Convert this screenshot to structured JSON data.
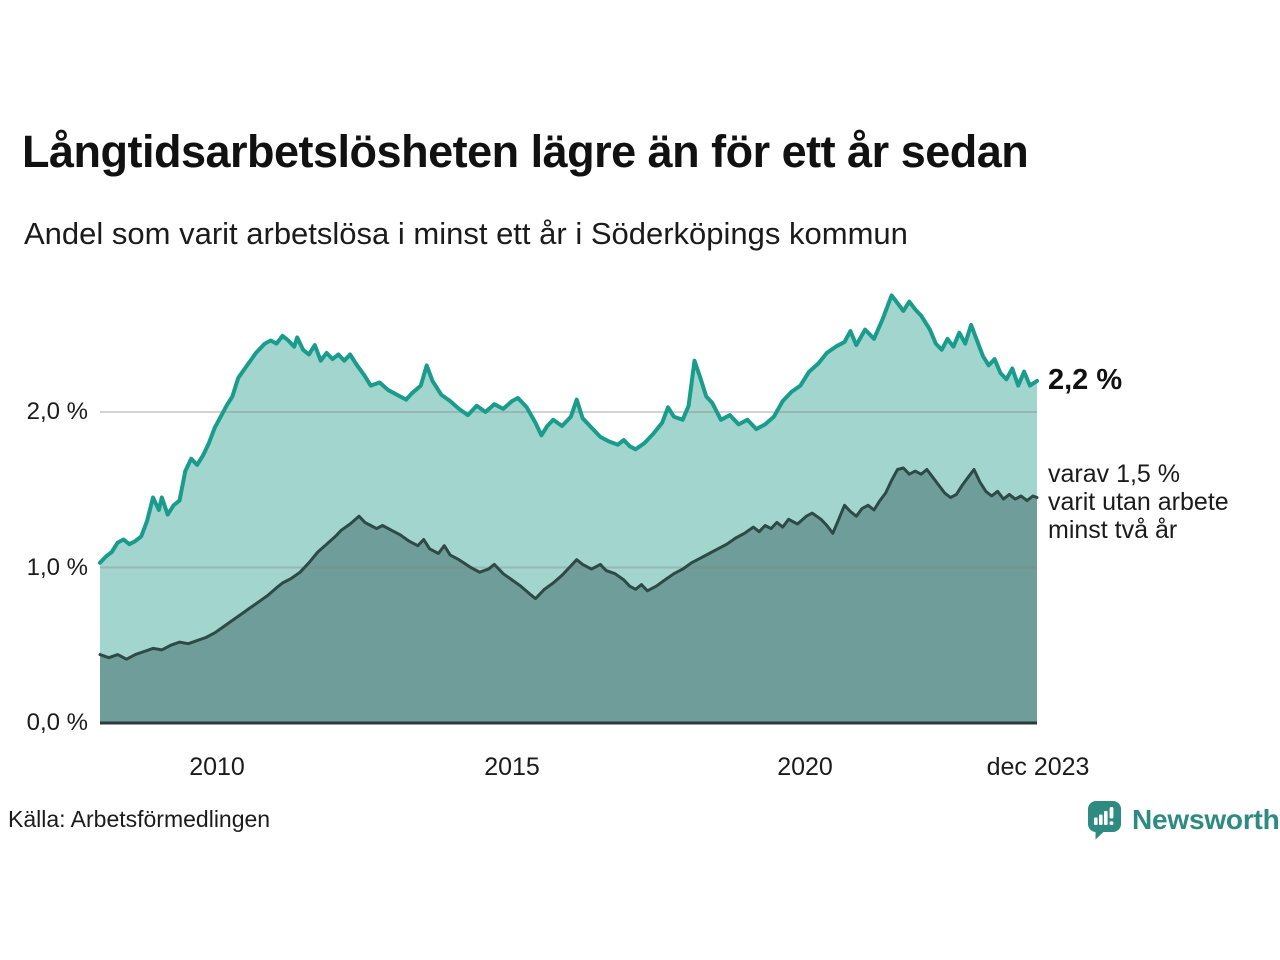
{
  "footer": {
    "source": "Källa: Arbetsförmedlingen",
    "brand": "Newsworthy"
  },
  "annotations": {
    "latest_total": "2,2 %",
    "breakdown": "varav 1,5 %\nvarit utan arbete\nminst två år"
  },
  "colors": {
    "series1_fill": "#a3d5cf",
    "series1_stroke": "#1a9c8c",
    "series2_fill": "#6f9d99",
    "series2_stroke": "#2d4a46",
    "gridline": "#808080",
    "baseline": "#2e3a38",
    "brand_teal": "#2f8b82",
    "text": "#1b1b1b"
  },
  "chart_data": {
    "type": "area",
    "title": "Långtidsarbetslösheten lägre än för ett år sedan",
    "subtitle": "Andel som varit arbetslösa i minst ett år i Söderköpings kommun",
    "unit": "%",
    "grid": "horizontal",
    "legend_position": "right-annotations",
    "xlim": [
      2008,
      2023.92
    ],
    "ylim": [
      0,
      3
    ],
    "xticks": [
      {
        "t": 2010,
        "label": "2010"
      },
      {
        "t": 2015,
        "label": "2015"
      },
      {
        "t": 2020,
        "label": "2020"
      },
      {
        "t": 2023.92,
        "label": "dec 2023"
      }
    ],
    "yticks": [
      {
        "value": 0,
        "label": "0,0 %"
      },
      {
        "value": 1,
        "label": "1,0 %"
      },
      {
        "value": 2,
        "label": "2,0 %"
      }
    ],
    "series": [
      {
        "name": "Andel arbetslösa minst ett år",
        "end_value": 2.2,
        "end_label": "2,2 %",
        "fill": "#a3d5cf",
        "stroke": "#1a9c8c",
        "stroke_width": 4,
        "points": [
          [
            2008.0,
            1.03
          ],
          [
            2008.1,
            1.07
          ],
          [
            2008.2,
            1.1
          ],
          [
            2008.3,
            1.16
          ],
          [
            2008.4,
            1.18
          ],
          [
            2008.5,
            1.15
          ],
          [
            2008.6,
            1.17
          ],
          [
            2008.7,
            1.2
          ],
          [
            2008.8,
            1.3
          ],
          [
            2008.9,
            1.45
          ],
          [
            2009.0,
            1.37
          ],
          [
            2009.05,
            1.45
          ],
          [
            2009.15,
            1.34
          ],
          [
            2009.25,
            1.4
          ],
          [
            2009.35,
            1.43
          ],
          [
            2009.45,
            1.62
          ],
          [
            2009.55,
            1.7
          ],
          [
            2009.65,
            1.66
          ],
          [
            2009.75,
            1.72
          ],
          [
            2009.85,
            1.8
          ],
          [
            2009.95,
            1.9
          ],
          [
            2010.05,
            1.97
          ],
          [
            2010.15,
            2.04
          ],
          [
            2010.25,
            2.1
          ],
          [
            2010.35,
            2.22
          ],
          [
            2010.5,
            2.3
          ],
          [
            2010.65,
            2.38
          ],
          [
            2010.8,
            2.44
          ],
          [
            2010.9,
            2.46
          ],
          [
            2011.0,
            2.44
          ],
          [
            2011.1,
            2.49
          ],
          [
            2011.2,
            2.46
          ],
          [
            2011.3,
            2.42
          ],
          [
            2011.35,
            2.48
          ],
          [
            2011.45,
            2.4
          ],
          [
            2011.55,
            2.37
          ],
          [
            2011.65,
            2.43
          ],
          [
            2011.75,
            2.33
          ],
          [
            2011.85,
            2.38
          ],
          [
            2011.95,
            2.34
          ],
          [
            2012.05,
            2.37
          ],
          [
            2012.15,
            2.33
          ],
          [
            2012.25,
            2.37
          ],
          [
            2012.35,
            2.31
          ],
          [
            2012.5,
            2.23
          ],
          [
            2012.6,
            2.17
          ],
          [
            2012.75,
            2.19
          ],
          [
            2012.9,
            2.14
          ],
          [
            2013.05,
            2.11
          ],
          [
            2013.2,
            2.08
          ],
          [
            2013.3,
            2.12
          ],
          [
            2013.45,
            2.17
          ],
          [
            2013.55,
            2.3
          ],
          [
            2013.65,
            2.2
          ],
          [
            2013.8,
            2.11
          ],
          [
            2013.95,
            2.07
          ],
          [
            2014.1,
            2.02
          ],
          [
            2014.25,
            1.98
          ],
          [
            2014.4,
            2.04
          ],
          [
            2014.55,
            2.0
          ],
          [
            2014.7,
            2.05
          ],
          [
            2014.85,
            2.02
          ],
          [
            2015.0,
            2.07
          ],
          [
            2015.1,
            2.09
          ],
          [
            2015.25,
            2.03
          ],
          [
            2015.4,
            1.93
          ],
          [
            2015.5,
            1.85
          ],
          [
            2015.6,
            1.91
          ],
          [
            2015.7,
            1.95
          ],
          [
            2015.85,
            1.91
          ],
          [
            2016.0,
            1.97
          ],
          [
            2016.1,
            2.08
          ],
          [
            2016.2,
            1.96
          ],
          [
            2016.35,
            1.9
          ],
          [
            2016.5,
            1.84
          ],
          [
            2016.65,
            1.81
          ],
          [
            2016.8,
            1.79
          ],
          [
            2016.9,
            1.82
          ],
          [
            2017.0,
            1.78
          ],
          [
            2017.1,
            1.76
          ],
          [
            2017.25,
            1.8
          ],
          [
            2017.4,
            1.86
          ],
          [
            2017.55,
            1.93
          ],
          [
            2017.65,
            2.03
          ],
          [
            2017.75,
            1.97
          ],
          [
            2017.9,
            1.95
          ],
          [
            2018.0,
            2.04
          ],
          [
            2018.1,
            2.33
          ],
          [
            2018.2,
            2.22
          ],
          [
            2018.3,
            2.1
          ],
          [
            2018.4,
            2.06
          ],
          [
            2018.55,
            1.95
          ],
          [
            2018.7,
            1.98
          ],
          [
            2018.85,
            1.92
          ],
          [
            2019.0,
            1.95
          ],
          [
            2019.15,
            1.89
          ],
          [
            2019.3,
            1.92
          ],
          [
            2019.45,
            1.97
          ],
          [
            2019.6,
            2.07
          ],
          [
            2019.75,
            2.13
          ],
          [
            2019.9,
            2.17
          ],
          [
            2020.05,
            2.26
          ],
          [
            2020.2,
            2.31
          ],
          [
            2020.35,
            2.38
          ],
          [
            2020.5,
            2.42
          ],
          [
            2020.65,
            2.45
          ],
          [
            2020.75,
            2.52
          ],
          [
            2020.85,
            2.43
          ],
          [
            2021.0,
            2.53
          ],
          [
            2021.15,
            2.47
          ],
          [
            2021.3,
            2.6
          ],
          [
            2021.45,
            2.75
          ],
          [
            2021.55,
            2.7
          ],
          [
            2021.65,
            2.65
          ],
          [
            2021.75,
            2.71
          ],
          [
            2021.85,
            2.66
          ],
          [
            2021.95,
            2.62
          ],
          [
            2022.1,
            2.53
          ],
          [
            2022.2,
            2.44
          ],
          [
            2022.3,
            2.4
          ],
          [
            2022.4,
            2.47
          ],
          [
            2022.5,
            2.42
          ],
          [
            2022.6,
            2.51
          ],
          [
            2022.7,
            2.44
          ],
          [
            2022.8,
            2.56
          ],
          [
            2022.9,
            2.46
          ],
          [
            2023.0,
            2.36
          ],
          [
            2023.1,
            2.3
          ],
          [
            2023.2,
            2.34
          ],
          [
            2023.3,
            2.25
          ],
          [
            2023.4,
            2.21
          ],
          [
            2023.5,
            2.28
          ],
          [
            2023.6,
            2.17
          ],
          [
            2023.7,
            2.26
          ],
          [
            2023.8,
            2.17
          ],
          [
            2023.92,
            2.2
          ]
        ]
      },
      {
        "name": "varav arbetslösa minst två år",
        "end_value": 1.5,
        "end_label": "varav 1,5 % varit utan arbete minst två år",
        "fill": "#6f9d99",
        "stroke": "#2d4a46",
        "stroke_width": 3,
        "points": [
          [
            2008.0,
            0.44
          ],
          [
            2008.15,
            0.42
          ],
          [
            2008.3,
            0.44
          ],
          [
            2008.45,
            0.41
          ],
          [
            2008.6,
            0.44
          ],
          [
            2008.75,
            0.46
          ],
          [
            2008.9,
            0.48
          ],
          [
            2009.05,
            0.47
          ],
          [
            2009.2,
            0.5
          ],
          [
            2009.35,
            0.52
          ],
          [
            2009.5,
            0.51
          ],
          [
            2009.65,
            0.53
          ],
          [
            2009.8,
            0.55
          ],
          [
            2009.95,
            0.58
          ],
          [
            2010.1,
            0.62
          ],
          [
            2010.25,
            0.66
          ],
          [
            2010.4,
            0.7
          ],
          [
            2010.55,
            0.74
          ],
          [
            2010.7,
            0.78
          ],
          [
            2010.85,
            0.82
          ],
          [
            2011.0,
            0.87
          ],
          [
            2011.1,
            0.9
          ],
          [
            2011.25,
            0.93
          ],
          [
            2011.4,
            0.97
          ],
          [
            2011.55,
            1.03
          ],
          [
            2011.7,
            1.1
          ],
          [
            2011.85,
            1.15
          ],
          [
            2012.0,
            1.2
          ],
          [
            2012.1,
            1.24
          ],
          [
            2012.25,
            1.28
          ],
          [
            2012.4,
            1.33
          ],
          [
            2012.5,
            1.29
          ],
          [
            2012.6,
            1.27
          ],
          [
            2012.7,
            1.25
          ],
          [
            2012.8,
            1.27
          ],
          [
            2012.95,
            1.24
          ],
          [
            2013.1,
            1.21
          ],
          [
            2013.25,
            1.17
          ],
          [
            2013.4,
            1.14
          ],
          [
            2013.5,
            1.18
          ],
          [
            2013.6,
            1.12
          ],
          [
            2013.75,
            1.09
          ],
          [
            2013.85,
            1.14
          ],
          [
            2013.95,
            1.08
          ],
          [
            2014.1,
            1.05
          ],
          [
            2014.3,
            1.0
          ],
          [
            2014.45,
            0.97
          ],
          [
            2014.6,
            0.99
          ],
          [
            2014.7,
            1.02
          ],
          [
            2014.85,
            0.96
          ],
          [
            2015.0,
            0.92
          ],
          [
            2015.15,
            0.88
          ],
          [
            2015.3,
            0.83
          ],
          [
            2015.4,
            0.8
          ],
          [
            2015.55,
            0.86
          ],
          [
            2015.7,
            0.9
          ],
          [
            2015.85,
            0.95
          ],
          [
            2016.0,
            1.01
          ],
          [
            2016.1,
            1.05
          ],
          [
            2016.2,
            1.02
          ],
          [
            2016.35,
            0.99
          ],
          [
            2016.5,
            1.02
          ],
          [
            2016.6,
            0.98
          ],
          [
            2016.75,
            0.96
          ],
          [
            2016.9,
            0.92
          ],
          [
            2017.0,
            0.88
          ],
          [
            2017.1,
            0.86
          ],
          [
            2017.2,
            0.89
          ],
          [
            2017.3,
            0.85
          ],
          [
            2017.45,
            0.88
          ],
          [
            2017.6,
            0.92
          ],
          [
            2017.75,
            0.96
          ],
          [
            2017.9,
            0.99
          ],
          [
            2018.05,
            1.03
          ],
          [
            2018.2,
            1.06
          ],
          [
            2018.35,
            1.09
          ],
          [
            2018.5,
            1.12
          ],
          [
            2018.65,
            1.15
          ],
          [
            2018.8,
            1.19
          ],
          [
            2018.95,
            1.22
          ],
          [
            2019.1,
            1.26
          ],
          [
            2019.2,
            1.23
          ],
          [
            2019.3,
            1.27
          ],
          [
            2019.4,
            1.25
          ],
          [
            2019.5,
            1.29
          ],
          [
            2019.6,
            1.26
          ],
          [
            2019.7,
            1.31
          ],
          [
            2019.85,
            1.28
          ],
          [
            2020.0,
            1.33
          ],
          [
            2020.1,
            1.35
          ],
          [
            2020.25,
            1.31
          ],
          [
            2020.35,
            1.27
          ],
          [
            2020.45,
            1.22
          ],
          [
            2020.55,
            1.31
          ],
          [
            2020.65,
            1.4
          ],
          [
            2020.75,
            1.36
          ],
          [
            2020.85,
            1.33
          ],
          [
            2020.95,
            1.38
          ],
          [
            2021.05,
            1.4
          ],
          [
            2021.15,
            1.37
          ],
          [
            2021.25,
            1.43
          ],
          [
            2021.35,
            1.48
          ],
          [
            2021.45,
            1.56
          ],
          [
            2021.55,
            1.63
          ],
          [
            2021.65,
            1.64
          ],
          [
            2021.75,
            1.6
          ],
          [
            2021.85,
            1.62
          ],
          [
            2021.95,
            1.6
          ],
          [
            2022.05,
            1.63
          ],
          [
            2022.15,
            1.58
          ],
          [
            2022.25,
            1.53
          ],
          [
            2022.35,
            1.48
          ],
          [
            2022.45,
            1.45
          ],
          [
            2022.55,
            1.47
          ],
          [
            2022.65,
            1.53
          ],
          [
            2022.75,
            1.58
          ],
          [
            2022.85,
            1.63
          ],
          [
            2022.95,
            1.55
          ],
          [
            2023.05,
            1.49
          ],
          [
            2023.15,
            1.46
          ],
          [
            2023.25,
            1.49
          ],
          [
            2023.35,
            1.44
          ],
          [
            2023.45,
            1.47
          ],
          [
            2023.55,
            1.44
          ],
          [
            2023.65,
            1.46
          ],
          [
            2023.75,
            1.43
          ],
          [
            2023.85,
            1.46
          ],
          [
            2023.92,
            1.45
          ]
        ]
      }
    ]
  }
}
